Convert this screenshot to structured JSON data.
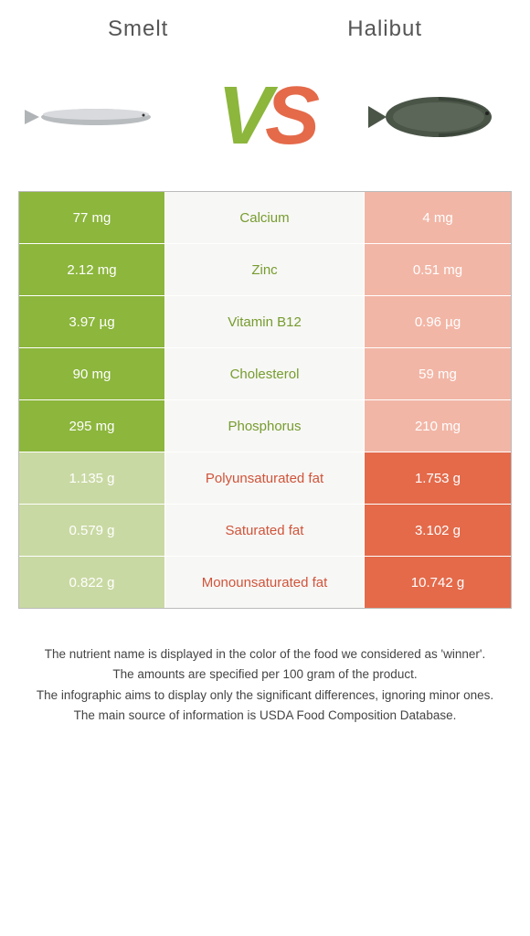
{
  "header": {
    "left_title": "Smelt",
    "right_title": "Halibut"
  },
  "vs": {
    "v": "V",
    "s": "S"
  },
  "colors": {
    "green": "#8cb63c",
    "green_dim": "#c9d9a3",
    "orange": "#e46a4a",
    "orange_dim": "#f2b6a6",
    "mid_bg": "#f7f7f5"
  },
  "table": {
    "rows": [
      {
        "left": "77 mg",
        "mid": "Calcium",
        "right": "4 mg",
        "winner": "left"
      },
      {
        "left": "2.12 mg",
        "mid": "Zinc",
        "right": "0.51 mg",
        "winner": "left"
      },
      {
        "left": "3.97 µg",
        "mid": "Vitamin B12",
        "right": "0.96 µg",
        "winner": "left"
      },
      {
        "left": "90 mg",
        "mid": "Cholesterol",
        "right": "59 mg",
        "winner": "left"
      },
      {
        "left": "295 mg",
        "mid": "Phosphorus",
        "right": "210 mg",
        "winner": "left"
      },
      {
        "left": "1.135 g",
        "mid": "Polyunsaturated fat",
        "right": "1.753 g",
        "winner": "right"
      },
      {
        "left": "0.579 g",
        "mid": "Saturated fat",
        "right": "3.102 g",
        "winner": "right"
      },
      {
        "left": "0.822 g",
        "mid": "Monounsaturated fat",
        "right": "10.742 g",
        "winner": "right"
      }
    ]
  },
  "footer": {
    "line1": "The nutrient name is displayed in the color of the food we considered as 'winner'.",
    "line2": "The amounts are specified per 100 gram of the product.",
    "line3": "The infographic aims to display only the significant differences, ignoring minor ones.",
    "line4": "The main source of information is USDA Food Composition Database."
  }
}
